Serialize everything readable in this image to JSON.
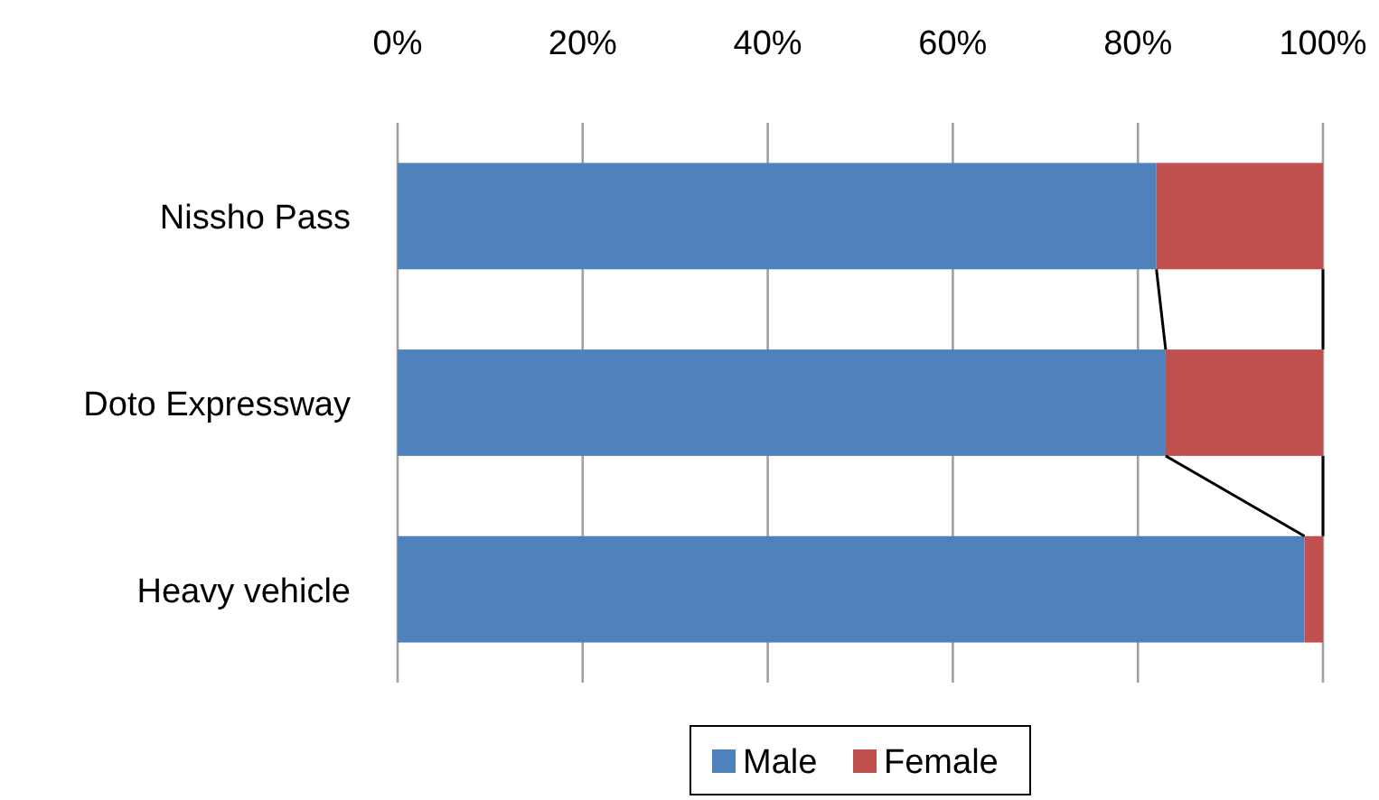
{
  "chart_data": {
    "type": "bar",
    "orientation": "horizontal",
    "stacked": true,
    "categories": [
      "Nissho Pass",
      "Doto Expressway",
      "Heavy vehicle"
    ],
    "series": [
      {
        "name": "Male",
        "color": "#4f81bd",
        "values": [
          82,
          83,
          98
        ]
      },
      {
        "name": "Female",
        "color": "#c0504d",
        "values": [
          18,
          17,
          2
        ]
      }
    ],
    "xlim": [
      0,
      100
    ],
    "xticks": [
      {
        "value": 0,
        "label": "0%"
      },
      {
        "value": 20,
        "label": "20%"
      },
      {
        "value": 40,
        "label": "40%"
      },
      {
        "value": 60,
        "label": "60%"
      },
      {
        "value": 80,
        "label": "80%"
      },
      {
        "value": 100,
        "label": "100%"
      }
    ],
    "grid": "x",
    "legend": "bottom"
  }
}
